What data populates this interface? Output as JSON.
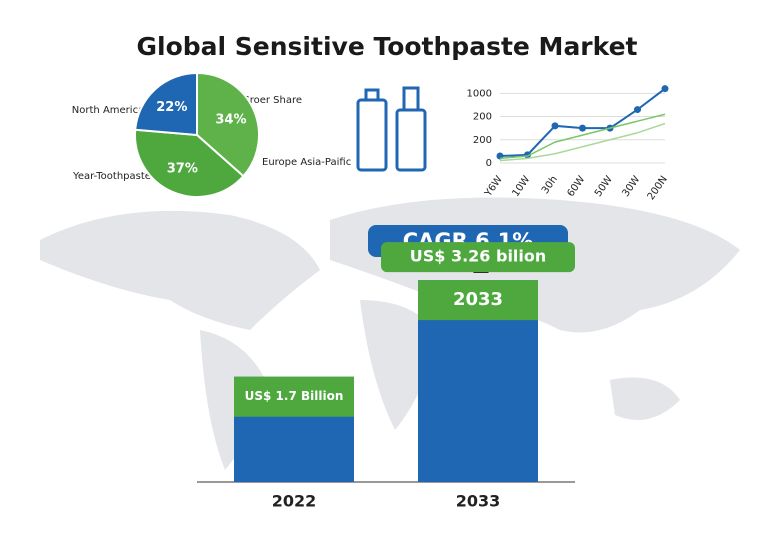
{
  "title": "Global Sensitive Toothpaste Market",
  "cagr": "CAGR 6.1%",
  "chart_data": [
    {
      "type": "pie",
      "values": [
        34,
        37,
        22
      ],
      "value_labels": [
        "34%",
        "37%",
        "22%"
      ],
      "colors": [
        "#5fb24a",
        "#4ea83e",
        "#1f66b3"
      ],
      "annotations": [
        "North America",
        "Groer Share",
        "Europe Asia-Paific",
        "Year-Toothpaste"
      ]
    },
    {
      "type": "line",
      "categories": [
        "Y6W",
        "10W",
        "30h",
        "60W",
        "50W",
        "30W",
        "200N"
      ],
      "ylim": [
        0,
        3.1
      ],
      "yticks": [
        {
          "value": 0,
          "label": "0"
        },
        {
          "value": 1,
          "label": "200"
        },
        {
          "value": 2,
          "label": "200"
        },
        {
          "value": 3,
          "label": "1000"
        }
      ],
      "grid": true,
      "series": [
        {
          "color": "#1f66b3",
          "values": [
            0.3,
            0.35,
            1.6,
            1.5,
            1.5,
            2.3,
            3.2
          ]
        },
        {
          "color": "#79c767",
          "values": [
            0.2,
            0.3,
            0.9,
            1.2,
            1.5,
            1.8,
            2.1
          ]
        },
        {
          "color": "#a8d99b",
          "values": [
            0.1,
            0.2,
            0.4,
            0.7,
            1.0,
            1.3,
            1.7
          ]
        }
      ]
    },
    {
      "type": "bar",
      "categories": [
        "2022",
        "2033"
      ],
      "values": [
        1.7,
        3.26
      ],
      "value_labels": [
        "US$ 1.7 Billion",
        "US$ 3.26 bilion"
      ],
      "ylim": [
        0,
        5.2
      ],
      "color": "#1f66b3",
      "cap_color": "#4ea83e"
    }
  ]
}
